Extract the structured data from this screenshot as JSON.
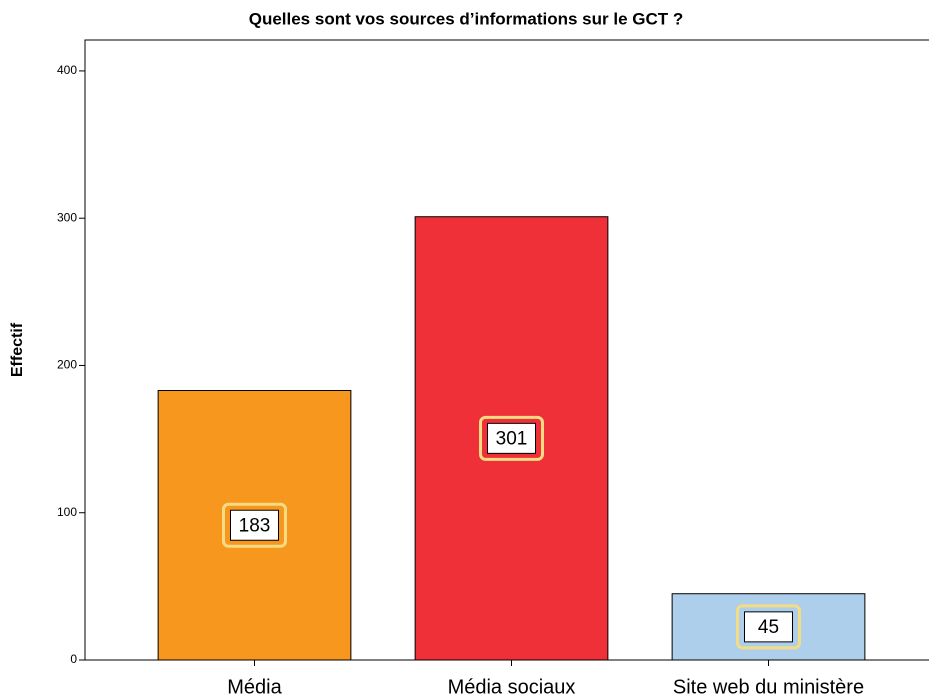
{
  "chart_data": {
    "type": "bar",
    "title": "Quelles sont vos sources d’informations sur le GCT ?",
    "y_label": "Effectif",
    "categories": [
      "Média",
      "Média sociaux",
      "Site web du ministère"
    ],
    "values": [
      183,
      301,
      45
    ],
    "colors": [
      "#f7971e",
      "#ef3038",
      "#aecfec"
    ],
    "ylim": [
      0,
      421
    ],
    "yticks": [
      0,
      100,
      200,
      300,
      400
    ]
  }
}
